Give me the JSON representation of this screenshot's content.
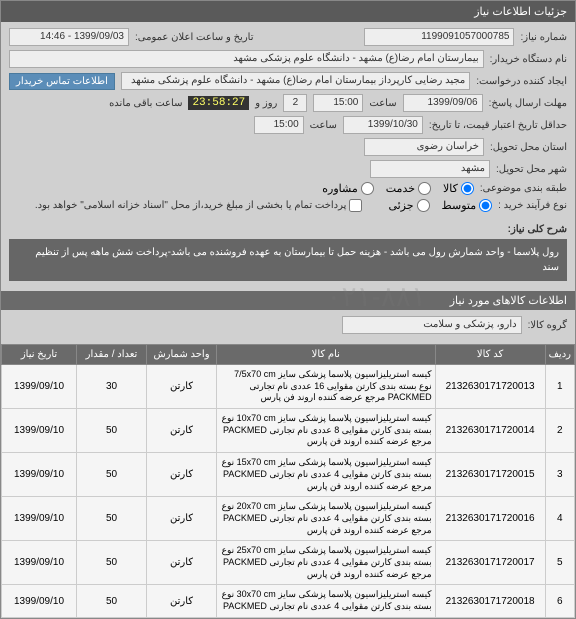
{
  "header": {
    "title": "جزئیات اطلاعات نیاز"
  },
  "fields": {
    "needNumberLabel": "شماره نیاز:",
    "needNumber": "1199091057000785",
    "announceLabel": "تاریخ و ساعت اعلان عمومی:",
    "announceValue": "1399/09/03 - 14:46",
    "buyerOrgLabel": "نام دستگاه خریدار:",
    "buyerOrg": "بیمارستان امام رضا(ع) مشهد - دانشگاه علوم پزشکی مشهد",
    "creatorLabel": "ایجاد کننده درخواست:",
    "creator": "مجید رضایی کارپرداز بیمارستان امام رضا(ع) مشهد - دانشگاه علوم پزشکی مشهد",
    "contactBtn": "اطلاعات تماس خریدار",
    "deadlineLabel": "مهلت ارسال پاسخ:",
    "deadlineDate": "1399/09/06",
    "timeLabel": "ساعت",
    "deadlineTime": "15:00",
    "daysRemain": "2",
    "daysRemainLabel": "روز و",
    "countdown": "23:58:27",
    "remainLabel": "ساعت باقی مانده",
    "validityLabel": "حداقل تاریخ اعتبار قیمت، تا تاریخ:",
    "validityDate": "1399/10/30",
    "validityTime": "15:00",
    "deliveryProvLabel": "استان محل تحویل:",
    "deliveryProv": "خراسان رضوی",
    "deliveryCityLabel": "شهر محل تحویل:",
    "deliveryCity": "مشهد",
    "groupingLabel": "طبقه بندی موضوعی:",
    "opt1": "کالا",
    "opt2": "خدمت",
    "opt3": "مشاوره",
    "purchaseTypeLabel": "نوع فرآیند خرید :",
    "ptOpt1": "متوسط",
    "ptOpt2": "جزئی",
    "paymentNote": "پرداخت تمام یا بخشی از مبلغ خرید،از محل \"اسناد خزانه اسلامی\" خواهد بود."
  },
  "descLabel": "شرح کلی نیاز:",
  "description": "رول پلاسما - واحد شمارش رول می باشد - هزینه حمل تا بیمارستان به عهده فروشنده می باشد-پرداخت شش ماهه پس از تنظیم سند",
  "itemsSection": "اطلاعات کالاهای مورد نیاز",
  "goodsGroupLabel": "گروه کالا:",
  "goodsGroup": "دارو، پزشکی و سلامت",
  "watermark": "۰۲۱-۸۸۱",
  "table": {
    "headers": [
      "ردیف",
      "کد کالا",
      "نام کالا",
      "واحد شمارش",
      "تعداد / مقدار",
      "تاریخ نیاز"
    ],
    "rows": [
      {
        "idx": "1",
        "code": "2132630171720013",
        "name": "کیسه استریلیزاسیون پلاسما پزشکی سایز 7/5x70 cm نوع بسته بندی کارتن مقوایی 16 عددی نام تجارتی PACKMED مرجع عرضه کننده اروند فن پارس",
        "unit": "کارتن",
        "qty": "30",
        "date": "1399/09/10"
      },
      {
        "idx": "2",
        "code": "2132630171720014",
        "name": "کیسه استریلیزاسیون پلاسما پزشکی سایز 10x70 cm نوع بسته بندی کارتن مقوایی 8 عددی نام تجارتی PACKMED مرجع عرضه کننده اروند فن پارس",
        "unit": "کارتن",
        "qty": "50",
        "date": "1399/09/10"
      },
      {
        "idx": "3",
        "code": "2132630171720015",
        "name": "کیسه استریلیزاسیون پلاسما پزشکی سایز 15x70 cm نوع بسته بندی کارتن مقوایی 4 عددی نام تجارتی PACKMED مرجع عرضه کننده اروند فن پارس",
        "unit": "کارتن",
        "qty": "50",
        "date": "1399/09/10"
      },
      {
        "idx": "4",
        "code": "2132630171720016",
        "name": "کیسه استریلیزاسیون پلاسما پزشکی سایز 20x70 cm نوع بسته بندی کارتن مقوایی 4 عددی نام تجارتی PACKMED مرجع عرضه کننده اروند فن پارس",
        "unit": "کارتن",
        "qty": "50",
        "date": "1399/09/10"
      },
      {
        "idx": "5",
        "code": "2132630171720017",
        "name": "کیسه استریلیزاسیون پلاسما پزشکی سایز 25x70 cm نوع بسته بندی کارتن مقوایی 4 عددی نام تجارتی PACKMED مرجع عرضه کننده اروند فن پارس",
        "unit": "کارتن",
        "qty": "50",
        "date": "1399/09/10"
      },
      {
        "idx": "6",
        "code": "2132630171720018",
        "name": "کیسه استریلیزاسیون پلاسما پزشکی سایز 30x70 cm نوع بسته بندی کارتن مقوایی 4 عددی نام تجارتی PACKMED",
        "unit": "کارتن",
        "qty": "50",
        "date": "1399/09/10"
      }
    ]
  }
}
